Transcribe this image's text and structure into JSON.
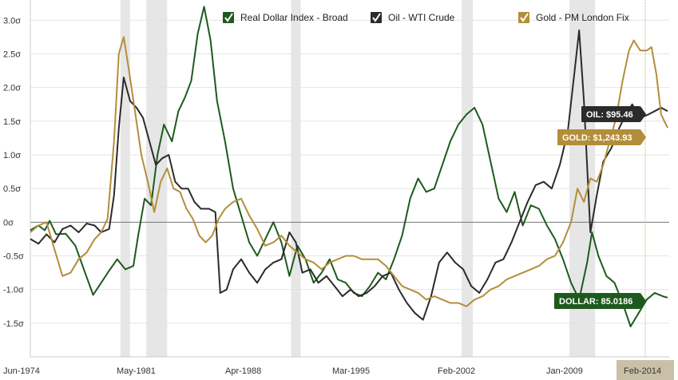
{
  "chart_data": {
    "type": "line",
    "title": "",
    "xlabel": "",
    "ylabel": "",
    "x_range": [
      "Jun-1974",
      "Feb-2014"
    ],
    "x_ticks": [
      "Jun-1974",
      "May-1981",
      "Apr-1988",
      "Mar-1995",
      "Feb-2002",
      "Jan-2009",
      "Feb-2014"
    ],
    "y_ticks": [
      "-1.5σ",
      "-1.0σ",
      "-0.5σ",
      "0σ",
      "0.5σ",
      "1.0σ",
      "1.5σ",
      "2.0σ",
      "2.5σ",
      "3.0σ"
    ],
    "y_tick_values": [
      -1.5,
      -1.0,
      -0.5,
      0,
      0.5,
      1.0,
      1.5,
      2.0,
      2.5,
      3.0
    ],
    "ylim": [
      -2.0,
      3.3
    ],
    "grid": true,
    "legend_position": "top",
    "recessions": [
      {
        "start": 1980.0,
        "end": 1980.6
      },
      {
        "start": 1981.6,
        "end": 1982.9
      },
      {
        "start": 1990.6,
        "end": 1991.2
      },
      {
        "start": 2001.2,
        "end": 2001.9
      },
      {
        "start": 2007.9,
        "end": 2009.5
      }
    ],
    "series": [
      {
        "name": "Real Dollar Index - Broad",
        "color": "#1e5a1e",
        "end_label": "DOLLAR: 85.0186",
        "points": [
          [
            1974.4,
            -0.12
          ],
          [
            1974.9,
            -0.05
          ],
          [
            1975.3,
            -0.12
          ],
          [
            1975.6,
            0.02
          ],
          [
            1976.0,
            -0.18
          ],
          [
            1976.6,
            -0.17
          ],
          [
            1977.2,
            -0.35
          ],
          [
            1977.8,
            -0.75
          ],
          [
            1978.3,
            -1.08
          ],
          [
            1978.8,
            -0.9
          ],
          [
            1979.3,
            -0.72
          ],
          [
            1979.8,
            -0.55
          ],
          [
            1980.3,
            -0.7
          ],
          [
            1980.8,
            -0.65
          ],
          [
            1981.1,
            -0.2
          ],
          [
            1981.5,
            0.35
          ],
          [
            1981.9,
            0.25
          ],
          [
            1982.3,
            1.0
          ],
          [
            1982.7,
            1.45
          ],
          [
            1983.2,
            1.2
          ],
          [
            1983.6,
            1.65
          ],
          [
            1984.0,
            1.85
          ],
          [
            1984.4,
            2.1
          ],
          [
            1984.8,
            2.8
          ],
          [
            1985.2,
            3.2
          ],
          [
            1985.6,
            2.7
          ],
          [
            1986.0,
            1.8
          ],
          [
            1986.5,
            1.2
          ],
          [
            1987.0,
            0.5
          ],
          [
            1987.5,
            0.1
          ],
          [
            1988.0,
            -0.3
          ],
          [
            1988.5,
            -0.5
          ],
          [
            1989.0,
            -0.25
          ],
          [
            1989.5,
            0.0
          ],
          [
            1990.0,
            -0.3
          ],
          [
            1990.5,
            -0.8
          ],
          [
            1991.0,
            -0.35
          ],
          [
            1991.5,
            -0.55
          ],
          [
            1992.0,
            -0.9
          ],
          [
            1992.5,
            -0.75
          ],
          [
            1993.0,
            -0.55
          ],
          [
            1993.5,
            -0.85
          ],
          [
            1994.0,
            -0.9
          ],
          [
            1994.5,
            -1.05
          ],
          [
            1995.0,
            -1.1
          ],
          [
            1995.5,
            -0.95
          ],
          [
            1996.0,
            -0.75
          ],
          [
            1996.5,
            -0.85
          ],
          [
            1997.0,
            -0.55
          ],
          [
            1997.5,
            -0.2
          ],
          [
            1998.0,
            0.35
          ],
          [
            1998.5,
            0.65
          ],
          [
            1999.0,
            0.45
          ],
          [
            1999.5,
            0.5
          ],
          [
            2000.0,
            0.85
          ],
          [
            2000.5,
            1.2
          ],
          [
            2001.0,
            1.45
          ],
          [
            2001.5,
            1.6
          ],
          [
            2002.0,
            1.7
          ],
          [
            2002.5,
            1.45
          ],
          [
            2003.0,
            0.9
          ],
          [
            2003.5,
            0.35
          ],
          [
            2004.0,
            0.15
          ],
          [
            2004.5,
            0.45
          ],
          [
            2005.0,
            -0.05
          ],
          [
            2005.5,
            0.25
          ],
          [
            2006.0,
            0.2
          ],
          [
            2006.5,
            -0.05
          ],
          [
            2007.0,
            -0.25
          ],
          [
            2007.5,
            -0.55
          ],
          [
            2008.0,
            -0.9
          ],
          [
            2008.5,
            -1.15
          ],
          [
            2009.0,
            -0.6
          ],
          [
            2009.3,
            -0.15
          ],
          [
            2009.7,
            -0.5
          ],
          [
            2010.2,
            -0.8
          ],
          [
            2010.7,
            -0.9
          ],
          [
            2011.2,
            -1.2
          ],
          [
            2011.7,
            -1.55
          ],
          [
            2012.2,
            -1.35
          ],
          [
            2012.7,
            -1.15
          ],
          [
            2013.2,
            -1.05
          ],
          [
            2013.7,
            -1.1
          ],
          [
            2014.0,
            -1.12
          ]
        ]
      },
      {
        "name": "Oil - WTI Crude",
        "color": "#2b2b2b",
        "end_label": "OIL: $95.46",
        "points": [
          [
            1974.4,
            -0.25
          ],
          [
            1974.9,
            -0.32
          ],
          [
            1975.4,
            -0.18
          ],
          [
            1975.9,
            -0.3
          ],
          [
            1976.4,
            -0.1
          ],
          [
            1976.9,
            -0.05
          ],
          [
            1977.4,
            -0.15
          ],
          [
            1977.9,
            -0.02
          ],
          [
            1978.4,
            -0.05
          ],
          [
            1978.8,
            -0.15
          ],
          [
            1979.3,
            -0.1
          ],
          [
            1979.6,
            0.4
          ],
          [
            1979.9,
            1.4
          ],
          [
            1980.2,
            2.15
          ],
          [
            1980.6,
            1.8
          ],
          [
            1981.0,
            1.7
          ],
          [
            1981.4,
            1.55
          ],
          [
            1981.8,
            1.2
          ],
          [
            1982.2,
            0.85
          ],
          [
            1982.6,
            0.95
          ],
          [
            1983.0,
            1.0
          ],
          [
            1983.4,
            0.6
          ],
          [
            1983.8,
            0.5
          ],
          [
            1984.2,
            0.5
          ],
          [
            1984.6,
            0.3
          ],
          [
            1985.0,
            0.2
          ],
          [
            1985.5,
            0.2
          ],
          [
            1985.9,
            0.15
          ],
          [
            1986.2,
            -1.05
          ],
          [
            1986.6,
            -1.0
          ],
          [
            1987.0,
            -0.7
          ],
          [
            1987.5,
            -0.55
          ],
          [
            1988.0,
            -0.75
          ],
          [
            1988.5,
            -0.9
          ],
          [
            1989.0,
            -0.7
          ],
          [
            1989.5,
            -0.6
          ],
          [
            1990.0,
            -0.55
          ],
          [
            1990.5,
            -0.15
          ],
          [
            1990.9,
            -0.3
          ],
          [
            1991.3,
            -0.75
          ],
          [
            1991.8,
            -0.7
          ],
          [
            1992.3,
            -0.9
          ],
          [
            1992.8,
            -0.8
          ],
          [
            1993.3,
            -0.95
          ],
          [
            1993.8,
            -1.1
          ],
          [
            1994.3,
            -1.0
          ],
          [
            1994.8,
            -1.1
          ],
          [
            1995.3,
            -1.05
          ],
          [
            1995.8,
            -0.95
          ],
          [
            1996.3,
            -0.8
          ],
          [
            1996.8,
            -0.75
          ],
          [
            1997.3,
            -1.0
          ],
          [
            1997.8,
            -1.2
          ],
          [
            1998.3,
            -1.35
          ],
          [
            1998.8,
            -1.45
          ],
          [
            1999.3,
            -1.1
          ],
          [
            1999.8,
            -0.6
          ],
          [
            2000.3,
            -0.45
          ],
          [
            2000.8,
            -0.6
          ],
          [
            2001.3,
            -0.7
          ],
          [
            2001.8,
            -0.95
          ],
          [
            2002.3,
            -1.05
          ],
          [
            2002.8,
            -0.85
          ],
          [
            2003.3,
            -0.6
          ],
          [
            2003.8,
            -0.55
          ],
          [
            2004.3,
            -0.3
          ],
          [
            2004.8,
            0.0
          ],
          [
            2005.3,
            0.3
          ],
          [
            2005.8,
            0.55
          ],
          [
            2006.3,
            0.6
          ],
          [
            2006.8,
            0.5
          ],
          [
            2007.3,
            0.85
          ],
          [
            2007.8,
            1.35
          ],
          [
            2008.2,
            2.2
          ],
          [
            2008.5,
            2.85
          ],
          [
            2008.8,
            1.8
          ],
          [
            2009.2,
            -0.15
          ],
          [
            2009.6,
            0.4
          ],
          [
            2010.0,
            0.9
          ],
          [
            2010.5,
            1.1
          ],
          [
            2011.0,
            1.4
          ],
          [
            2011.4,
            1.6
          ],
          [
            2011.8,
            1.75
          ],
          [
            2012.3,
            1.55
          ],
          [
            2012.8,
            1.6
          ],
          [
            2013.2,
            1.65
          ],
          [
            2013.6,
            1.7
          ],
          [
            2014.0,
            1.65
          ]
        ]
      },
      {
        "name": "Gold - PM London Fix",
        "color": "#b38e3a",
        "end_label": "GOLD: $1,243.93",
        "points": [
          [
            1974.4,
            -0.15
          ],
          [
            1974.9,
            -0.05
          ],
          [
            1975.4,
            0.0
          ],
          [
            1975.9,
            -0.4
          ],
          [
            1976.4,
            -0.8
          ],
          [
            1976.9,
            -0.75
          ],
          [
            1977.4,
            -0.55
          ],
          [
            1977.9,
            -0.45
          ],
          [
            1978.4,
            -0.25
          ],
          [
            1978.8,
            -0.15
          ],
          [
            1979.2,
            0.05
          ],
          [
            1979.6,
            1.2
          ],
          [
            1979.9,
            2.5
          ],
          [
            1980.2,
            2.75
          ],
          [
            1980.5,
            2.3
          ],
          [
            1980.9,
            1.65
          ],
          [
            1981.3,
            1.0
          ],
          [
            1981.7,
            0.6
          ],
          [
            1982.1,
            0.15
          ],
          [
            1982.5,
            0.6
          ],
          [
            1982.9,
            0.8
          ],
          [
            1983.3,
            0.5
          ],
          [
            1983.7,
            0.45
          ],
          [
            1984.1,
            0.2
          ],
          [
            1984.5,
            0.05
          ],
          [
            1984.9,
            -0.2
          ],
          [
            1985.3,
            -0.3
          ],
          [
            1985.7,
            -0.2
          ],
          [
            1986.1,
            0.05
          ],
          [
            1986.5,
            0.2
          ],
          [
            1987.0,
            0.3
          ],
          [
            1987.5,
            0.35
          ],
          [
            1988.0,
            0.1
          ],
          [
            1988.5,
            -0.1
          ],
          [
            1989.0,
            -0.35
          ],
          [
            1989.5,
            -0.3
          ],
          [
            1990.0,
            -0.2
          ],
          [
            1990.5,
            -0.35
          ],
          [
            1991.0,
            -0.45
          ],
          [
            1991.5,
            -0.55
          ],
          [
            1992.0,
            -0.6
          ],
          [
            1992.5,
            -0.7
          ],
          [
            1993.0,
            -0.6
          ],
          [
            1993.5,
            -0.55
          ],
          [
            1994.0,
            -0.5
          ],
          [
            1994.5,
            -0.5
          ],
          [
            1995.0,
            -0.55
          ],
          [
            1995.5,
            -0.55
          ],
          [
            1996.0,
            -0.55
          ],
          [
            1996.5,
            -0.65
          ],
          [
            1997.0,
            -0.8
          ],
          [
            1997.5,
            -0.95
          ],
          [
            1998.0,
            -1.0
          ],
          [
            1998.5,
            -1.05
          ],
          [
            1999.0,
            -1.15
          ],
          [
            1999.5,
            -1.1
          ],
          [
            2000.0,
            -1.15
          ],
          [
            2000.5,
            -1.2
          ],
          [
            2001.0,
            -1.2
          ],
          [
            2001.5,
            -1.25
          ],
          [
            2002.0,
            -1.15
          ],
          [
            2002.5,
            -1.1
          ],
          [
            2003.0,
            -1.0
          ],
          [
            2003.5,
            -0.95
          ],
          [
            2004.0,
            -0.85
          ],
          [
            2004.5,
            -0.8
          ],
          [
            2005.0,
            -0.75
          ],
          [
            2005.5,
            -0.7
          ],
          [
            2006.0,
            -0.65
          ],
          [
            2006.5,
            -0.55
          ],
          [
            2007.0,
            -0.5
          ],
          [
            2007.5,
            -0.3
          ],
          [
            2008.0,
            0.0
          ],
          [
            2008.4,
            0.5
          ],
          [
            2008.8,
            0.3
          ],
          [
            2009.2,
            0.65
          ],
          [
            2009.6,
            0.6
          ],
          [
            2010.0,
            0.85
          ],
          [
            2010.4,
            1.2
          ],
          [
            2010.8,
            1.55
          ],
          [
            2011.2,
            2.1
          ],
          [
            2011.6,
            2.55
          ],
          [
            2011.9,
            2.7
          ],
          [
            2012.3,
            2.55
          ],
          [
            2012.7,
            2.55
          ],
          [
            2013.0,
            2.6
          ],
          [
            2013.3,
            2.2
          ],
          [
            2013.6,
            1.6
          ],
          [
            2014.0,
            1.4
          ]
        ]
      }
    ]
  }
}
